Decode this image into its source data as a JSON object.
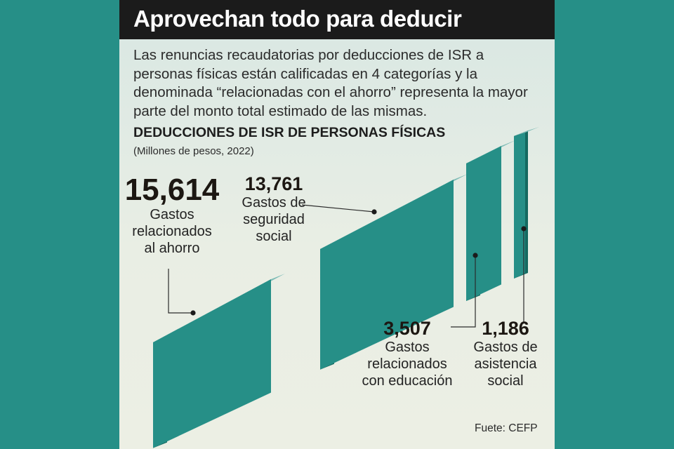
{
  "header": {
    "title": "Aprovechan todo para deducir"
  },
  "intro": "Las renuncias recaudatorias por deducciones de ISR a personas físicas están calificadas en 4 categorías y la denominada “relacionadas con el ahorro” representa la mayor parte del monto total estimado de las mismas.",
  "footer": {
    "source": "Fuete: CEFP"
  },
  "colors": {
    "front": "#268f87",
    "top": "#7fbcb6",
    "side": "#146960",
    "background": "#268f87",
    "leader": "#2b2b2b"
  },
  "chart_data": {
    "type": "bar",
    "title": "DEDUCCIONES DE ISR DE PERSONAS FÍSICAS",
    "subtitle": "(Millones de pesos, 2022)",
    "categories": [
      "Gastos relacionados al ahorro",
      "Gastos de seguridad social",
      "Gastos relacionados con educación",
      "Gastos de asistencia social"
    ],
    "values": [
      15614,
      13761,
      3507,
      1186
    ],
    "value_labels": [
      "15,614",
      "13,761",
      "3,507",
      "1,186"
    ],
    "label_lines": [
      [
        "Gastos",
        "relacionados",
        "al ahorro"
      ],
      [
        "Gastos de",
        "seguridad",
        "social"
      ],
      [
        "Gastos",
        "relacionados",
        "con educación"
      ],
      [
        "Gastos de",
        "asistencia",
        "social"
      ]
    ],
    "style": "3d-stepped-blocks",
    "grid": false,
    "legend": "none"
  }
}
